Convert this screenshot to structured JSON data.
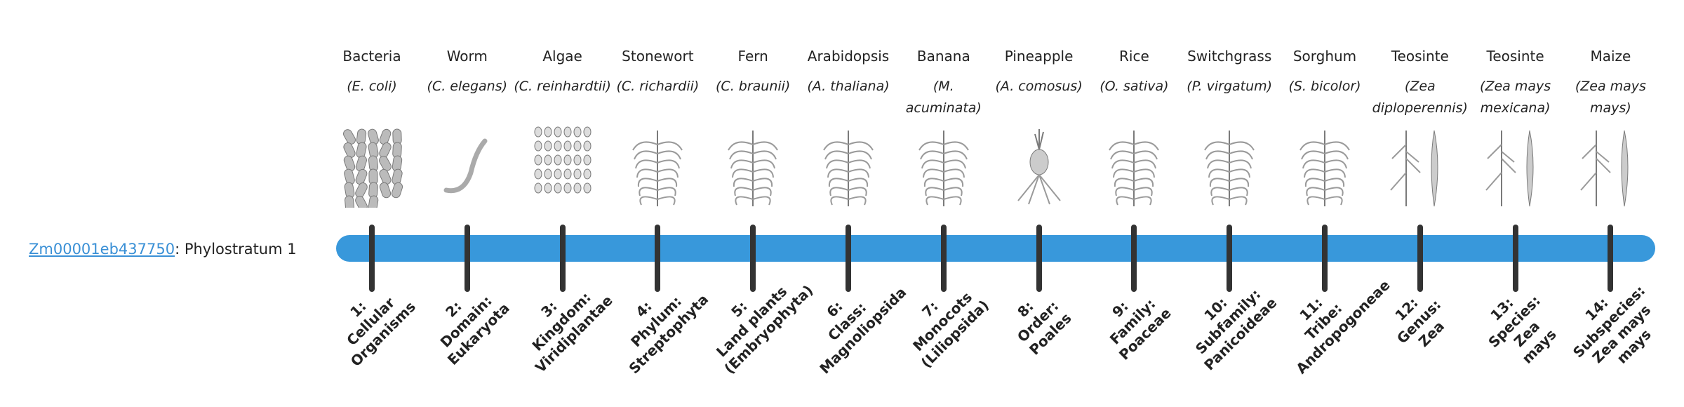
{
  "gene": {
    "id": "Zm00001eb437750",
    "suffix": ": Phylostratum 1"
  },
  "colors": {
    "bar": "#3898db",
    "tick": "#333333",
    "link": "#3a90d6"
  },
  "strata": [
    {
      "name": "Bacteria",
      "species": "(E. coli)",
      "icon": "bacteria-icon",
      "label": "1:\nCellular\nOrganisms"
    },
    {
      "name": "Worm",
      "species": "(C. elegans)",
      "icon": "worm-icon",
      "label": "2:\nDomain:\nEukaryota"
    },
    {
      "name": "Algae",
      "species": "(C. reinhardtii)",
      "icon": "algae-icon",
      "label": "3:\nKingdom:\nViridiplantae"
    },
    {
      "name": "Stonewort",
      "species": "(C. richardii)",
      "icon": "stonewort-icon",
      "label": "4:\nPhylum:\nStreptophyta"
    },
    {
      "name": "Fern",
      "species": "(C. braunii)",
      "icon": "fern-icon",
      "label": "5:\nLand plants\n(Embryophyta)"
    },
    {
      "name": "Arabidopsis",
      "species": "(A. thaliana)",
      "icon": "arabidopsis-icon",
      "label": "6:\nClass:\nMagnoliopsida"
    },
    {
      "name": "Banana",
      "species": "(M. acuminata)",
      "icon": "banana-icon",
      "label": "7:\nMonocots\n(Liliopsida)"
    },
    {
      "name": "Pineapple",
      "species": "(A. comosus)",
      "icon": "pineapple-icon",
      "label": "8:\nOrder:\nPoales"
    },
    {
      "name": "Rice",
      "species": "(O. sativa)",
      "icon": "rice-icon",
      "label": "9:\nFamily:\nPoaceae"
    },
    {
      "name": "Switchgrass",
      "species": "(P. virgatum)",
      "icon": "switchgrass-icon",
      "label": "10:\nSubfamily:\nPanicoideae"
    },
    {
      "name": "Sorghum",
      "species": "(S. bicolor)",
      "icon": "sorghum-icon",
      "label": "11:\nTribe:\nAndropogoneae"
    },
    {
      "name": "Teosinte",
      "species": "(Zea diploperennis)",
      "icon": "teosinte-icon",
      "label": "12:\nGenus:\nZea"
    },
    {
      "name": "Teosinte",
      "species": "(Zea mays mexicana)",
      "icon": "teosinte-icon",
      "label": "13:\nSpecies:\nZea\nmays"
    },
    {
      "name": "Maize",
      "species": "(Zea mays mays)",
      "icon": "maize-icon",
      "label": "14:\nSubspecies:\nZea mays\nmays"
    }
  ]
}
